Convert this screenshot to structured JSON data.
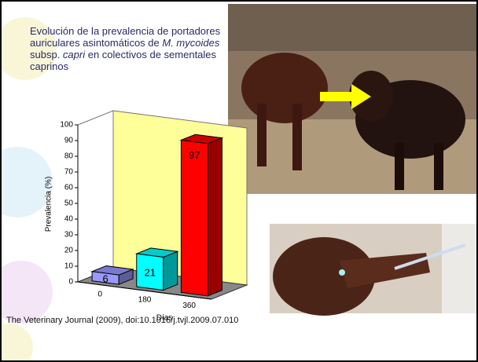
{
  "slide": {
    "title_parts": [
      {
        "text": "Evolución de la prevalencia de portadores auriculares asintomáticos de ",
        "italic": false
      },
      {
        "text": "M. mycoides",
        "italic": true
      },
      {
        "text": " subsp. ",
        "italic": false
      },
      {
        "text": "capri",
        "italic": true
      },
      {
        "text": " en colectivos de sementales caprinos",
        "italic": false
      }
    ],
    "citation": "The Veterinary Journal (2009), doi:10.1016/j.tvjl.2009.07.010"
  },
  "chart_data": {
    "type": "bar3d",
    "ylabel": "Prevalencia (%)",
    "xlabel": "Días",
    "categories": [
      "0",
      "180",
      "360"
    ],
    "values": [
      6,
      21,
      97
    ],
    "colors": [
      "#9999ff",
      "#00ffff",
      "#ff0000"
    ],
    "ylim": [
      0,
      100
    ],
    "yticks": [
      0,
      10,
      20,
      30,
      40,
      50,
      60,
      70,
      80,
      90,
      100
    ]
  }
}
